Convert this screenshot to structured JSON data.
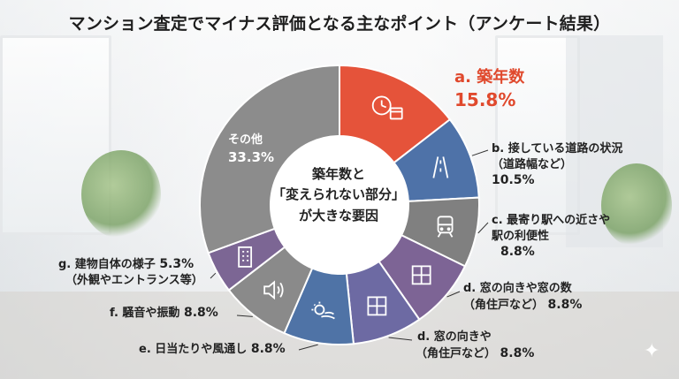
{
  "title": "マンション査定でマイナス評価となる主なポイント（アンケート結果）",
  "center_text": [
    "築年数と",
    "「変えられない部分」",
    "が大きな要因"
  ],
  "colors": {
    "a": "#e5533a",
    "b": "#4e72a8",
    "c": "#808080",
    "d1": "#7d6495",
    "d2": "#6d6aa3",
    "e": "#4f73a6",
    "f": "#8a8a8a",
    "g": "#7c6694",
    "other": "#8c8c8c",
    "accent_text": "#e0492d"
  },
  "labels": {
    "a": {
      "line1": "a. 築年数",
      "line2": "15.8%"
    },
    "b": {
      "line1": "b. 接している道路の状況",
      "line2": "（道路幅など）",
      "line3": "10.5%"
    },
    "c": {
      "line1": "c. 最寄り駅への近さや",
      "line2": "駅の利便性",
      "line3": "8.8%"
    },
    "d1": {
      "line1": "d. 窓の向きや窓の数",
      "line2": "（角住戸など）",
      "pct": "8.8%"
    },
    "d2": {
      "line1": "d. 窓の向きや",
      "line2": "（角住戸など）",
      "pct": "8.8%"
    },
    "e": {
      "line1": "e. 日当たりや風通し",
      "pct": "8.8%"
    },
    "f": {
      "line1": "f. 騒音や振動",
      "pct": "8.8%"
    },
    "g": {
      "line1": "g. 建物自体の様子",
      "pct": "5.3%",
      "line2": "（外観やエントランス等）"
    },
    "other": {
      "line1": "その他",
      "line2": "33.3%"
    }
  },
  "icons": {
    "a": "clock-calendar-icon",
    "b": "road-icon",
    "c": "train-icon",
    "d1": "window-icon",
    "d2": "window-icon",
    "e": "sun-wind-icon",
    "f": "speaker-icon",
    "g": "building-icon"
  },
  "chart_data": {
    "type": "pie",
    "title": "マンション査定でマイナス評価となる主なポイント（アンケート結果）",
    "categories": [
      "a. 築年数",
      "b. 接している道路の状況（道路幅など）",
      "c. 最寄り駅への近さや駅の利便性",
      "d. 窓の向きや窓の数（角住戸など）",
      "d. 窓の向きや（角住戸など）",
      "e. 日当たりや風通し",
      "f. 騒音や振動",
      "g. 建物自体の様子（外観やエントランス等）",
      "その他"
    ],
    "keys": [
      "a",
      "b",
      "c",
      "d1",
      "d2",
      "e",
      "f",
      "g",
      "other"
    ],
    "values": [
      15.8,
      10.5,
      8.8,
      8.8,
      8.8,
      8.8,
      8.8,
      5.3,
      33.3
    ],
    "donut": true
  }
}
